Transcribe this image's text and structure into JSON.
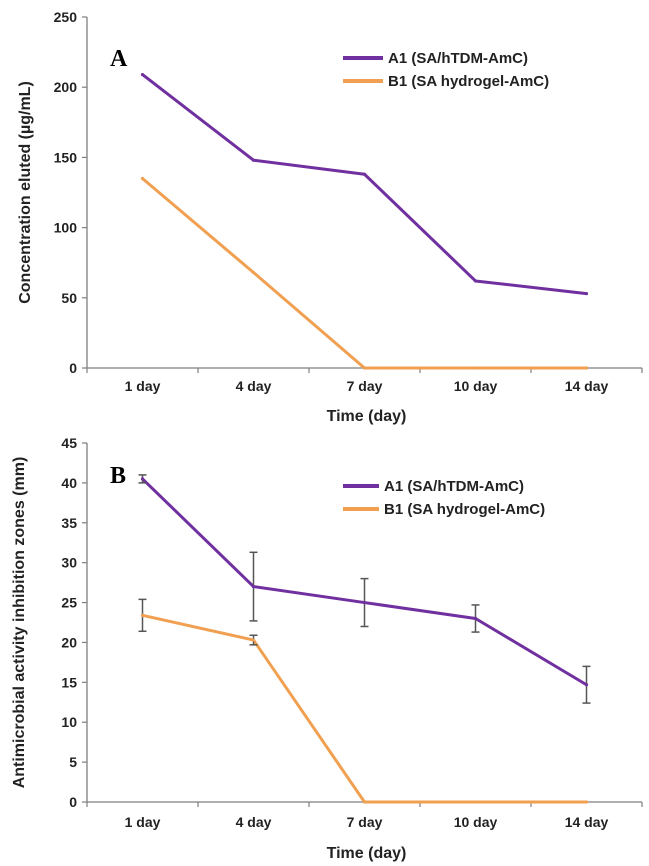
{
  "chart_data": [
    {
      "type": "line",
      "panel_label": "A",
      "title": "",
      "xlabel": "Time (day)",
      "ylabel": "Concentration eluted (µg/mL)",
      "ylim": [
        0,
        250
      ],
      "yticks": [
        0,
        50,
        100,
        150,
        200,
        250
      ],
      "categories": [
        "1 day",
        "4 day",
        "7 day",
        "10 day",
        "14 day"
      ],
      "legend_position": "top-right",
      "series": [
        {
          "name": "A1 (SA/hTDM-AmC)",
          "color": "#7030a0",
          "values": [
            209,
            148,
            138,
            62,
            53
          ]
        },
        {
          "name": "B1 (SA hydrogel-AmC)",
          "color": "#f0a050",
          "values": [
            135,
            68,
            0,
            0,
            0
          ]
        }
      ]
    },
    {
      "type": "line",
      "panel_label": "B",
      "title": "",
      "xlabel": "Time (day)",
      "ylabel": "Antimicrobial activity inhibition zones (mm)",
      "ylim": [
        0,
        45
      ],
      "yticks": [
        0,
        5,
        10,
        15,
        20,
        25,
        30,
        35,
        40,
        45
      ],
      "categories": [
        "1 day",
        "4 day",
        "7 day",
        "10 day",
        "14 day"
      ],
      "legend_position": "top-right",
      "series": [
        {
          "name": "A1 (SA/hTDM-AmC)",
          "color": "#7030a0",
          "values": [
            40.5,
            27,
            25,
            23,
            14.7
          ],
          "errors": [
            0.5,
            4.3,
            3,
            1.7,
            2.3
          ]
        },
        {
          "name": "B1 (SA hydrogel-AmC)",
          "color": "#f0a050",
          "values": [
            23.4,
            20.3,
            0,
            0,
            0
          ],
          "errors": [
            2,
            0.6,
            0,
            0,
            0
          ]
        }
      ]
    }
  ]
}
